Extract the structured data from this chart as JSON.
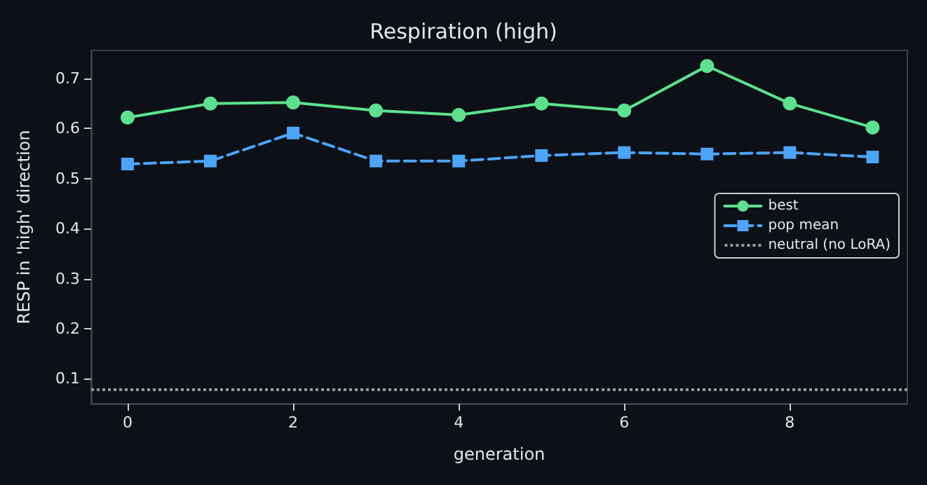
{
  "chart_data": {
    "type": "line",
    "title": "Respiration (high)",
    "xlabel": "generation",
    "ylabel": "RESP in 'high' direction",
    "x": [
      0,
      1,
      2,
      3,
      4,
      5,
      6,
      7,
      8,
      9
    ],
    "series": [
      {
        "name": "best",
        "color": "#5ee08f",
        "marker": "circle",
        "line_style": "solid",
        "values": [
          0.622,
          0.65,
          0.652,
          0.636,
          0.627,
          0.65,
          0.636,
          0.725,
          0.65,
          0.602
        ]
      },
      {
        "name": "pop mean",
        "color": "#4ea4f7",
        "marker": "square",
        "line_style": "dashed",
        "values": [
          0.529,
          0.535,
          0.591,
          0.535,
          0.535,
          0.546,
          0.552,
          0.549,
          0.552,
          0.543
        ]
      }
    ],
    "ref_lines": [
      {
        "axis": "y",
        "value": 0.08,
        "label": "neutral (no LoRA)",
        "color": "#9a9a9a",
        "line_style": "dotted"
      }
    ],
    "xlim": [
      -0.44,
      9.42
    ],
    "xticks": [
      0,
      2,
      4,
      6,
      8
    ],
    "ylim": [
      0.05,
      0.756
    ],
    "yticks": [
      0.1,
      0.2,
      0.3,
      0.4,
      0.5,
      0.6,
      0.7
    ],
    "grid": false,
    "legend": "right"
  }
}
